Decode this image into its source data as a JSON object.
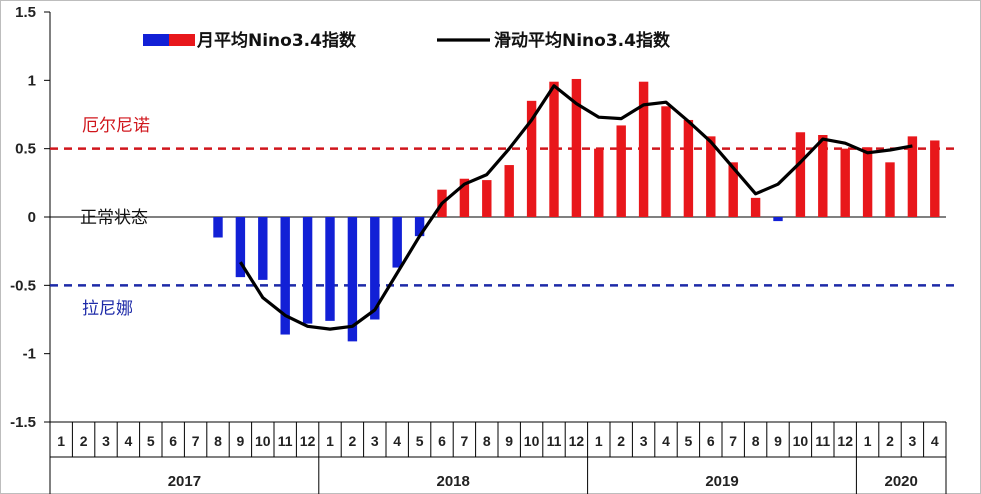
{
  "chart_data": {
    "type": "bar",
    "ylim": [
      -1.5,
      1.5
    ],
    "yticks": [
      "1.5",
      "1",
      "0.5",
      "0",
      "-0.5",
      "-1",
      "-1.5"
    ],
    "ytick_values": [
      1.5,
      1,
      0.5,
      0,
      -0.5,
      -1,
      -1.5
    ],
    "month_labels": [
      "1",
      "2",
      "3",
      "4",
      "5",
      "6",
      "7",
      "8",
      "9",
      "10",
      "11",
      "12",
      "1",
      "2",
      "3",
      "4",
      "5",
      "6",
      "7",
      "8",
      "9",
      "10",
      "11",
      "12",
      "1",
      "2",
      "3",
      "4",
      "5",
      "6",
      "7",
      "8",
      "9",
      "10",
      "11",
      "12",
      "1",
      "2",
      "3",
      "4"
    ],
    "years": [
      {
        "label": "2017",
        "months": 12
      },
      {
        "label": "2018",
        "months": 12
      },
      {
        "label": "2019",
        "months": 12
      },
      {
        "label": "2020",
        "months": 4
      }
    ],
    "series": [
      {
        "name": "月平均Nino3.4指数",
        "kind": "bar",
        "values": [
          null,
          null,
          null,
          null,
          null,
          null,
          null,
          -0.15,
          -0.44,
          -0.46,
          -0.86,
          -0.78,
          -0.76,
          -0.91,
          -0.75,
          -0.37,
          -0.14,
          0.2,
          0.28,
          0.27,
          0.38,
          0.85,
          0.99,
          1.01,
          0.5,
          0.67,
          0.99,
          0.81,
          0.71,
          0.59,
          0.4,
          0.14,
          -0.03,
          0.62,
          0.6,
          0.5,
          0.51,
          0.4,
          0.59,
          0.56
        ]
      },
      {
        "name": "滑动平均Nino3.4指数",
        "kind": "line",
        "values": [
          null,
          null,
          null,
          null,
          null,
          null,
          null,
          null,
          -0.33,
          -0.59,
          -0.72,
          -0.8,
          -0.82,
          -0.8,
          -0.68,
          -0.41,
          -0.14,
          0.1,
          0.24,
          0.31,
          0.5,
          0.71,
          0.96,
          0.83,
          0.73,
          0.72,
          0.82,
          0.84,
          0.7,
          0.55,
          0.36,
          0.17,
          0.24,
          0.4,
          0.57,
          0.54,
          0.47,
          0.49,
          0.52,
          null
        ]
      }
    ],
    "legend": [
      {
        "label": "月平均Nino3.4指数",
        "kind": "bar"
      },
      {
        "label": "滑动平均Nino3.4指数",
        "kind": "line"
      }
    ],
    "reference_lines": [
      {
        "value": 0.5,
        "label": "厄尔尼诺",
        "color": "#d0161c"
      },
      {
        "value": -0.5,
        "label": "拉尼娜",
        "color": "#1d2aa8"
      }
    ],
    "zero_label": "正常状态",
    "colors": {
      "positive_bar": "#e8171b",
      "negative_bar": "#1220d6",
      "line": "#000000",
      "elnino": "#d0161c",
      "lanina": "#1d2aa8",
      "zero_label": "#111111"
    }
  }
}
